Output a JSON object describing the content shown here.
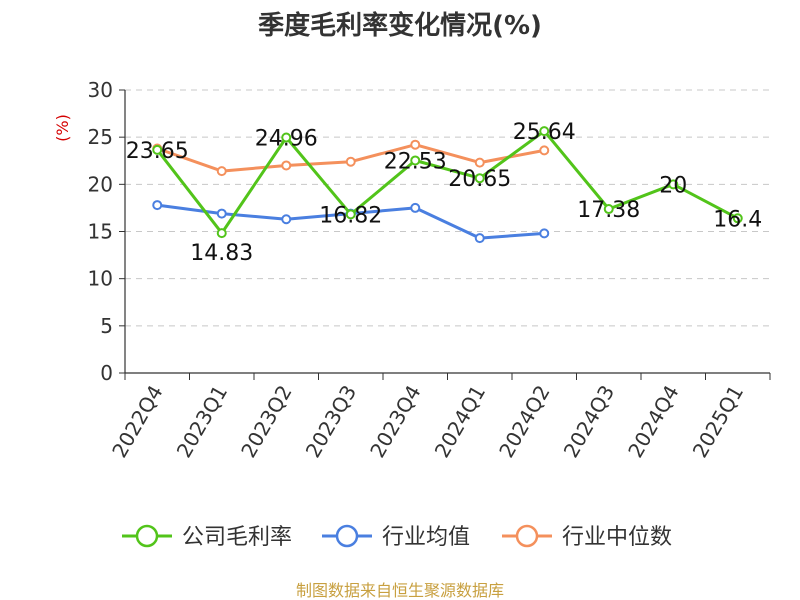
{
  "chart_data": {
    "type": "line",
    "title": "季度毛利率变化情况(%)",
    "ylabel": "(%)",
    "xlabel": "",
    "categories": [
      "2022Q4",
      "2023Q1",
      "2023Q2",
      "2023Q3",
      "2023Q4",
      "2024Q1",
      "2024Q2",
      "2024Q3",
      "2024Q4",
      "2025Q1"
    ],
    "ylim": [
      0,
      30
    ],
    "yticks": [
      0,
      5,
      10,
      15,
      20,
      25,
      30
    ],
    "grid": true,
    "legend_position": "bottom",
    "series": [
      {
        "name": "公司毛利率",
        "color": "#52c41a",
        "values": [
          23.65,
          14.83,
          24.96,
          16.82,
          22.53,
          20.65,
          25.64,
          17.38,
          20,
          16.4
        ],
        "labels": [
          "23.65",
          "14.83",
          "24.96",
          "16.82",
          "22.53",
          "20.65",
          "25.64",
          "17.38",
          "20",
          "16.4"
        ]
      },
      {
        "name": "行业均值",
        "color": "#4a7fe0",
        "values": [
          17.8,
          16.9,
          16.3,
          16.9,
          17.5,
          14.3,
          14.8,
          null,
          null,
          null
        ]
      },
      {
        "name": "行业中位数",
        "color": "#f4905c",
        "values": [
          23.8,
          21.4,
          22.0,
          22.4,
          24.2,
          22.3,
          23.6,
          null,
          null,
          null
        ]
      }
    ]
  },
  "footer": {
    "source": "制图数据来自恒生聚源数据库"
  }
}
